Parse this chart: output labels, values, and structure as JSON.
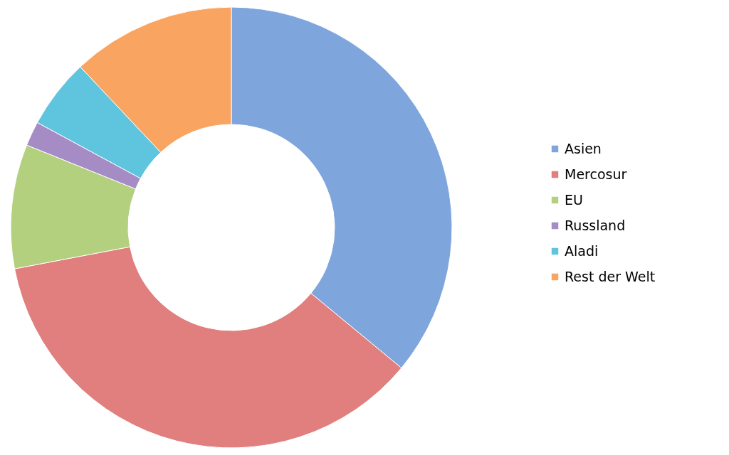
{
  "chart_data": {
    "type": "donut",
    "categories": [
      "Asien",
      "Mercosur",
      "EU",
      "Russland",
      "Aladi",
      "Rest der Welt"
    ],
    "values": [
      36.0,
      36.0,
      9.1,
      1.8,
      5.1,
      12.0
    ],
    "colors": [
      "#7fa6dc",
      "#e07f7d",
      "#b3d07f",
      "#a58cc4",
      "#5fc4de",
      "#f9a460"
    ],
    "legend": "right"
  }
}
